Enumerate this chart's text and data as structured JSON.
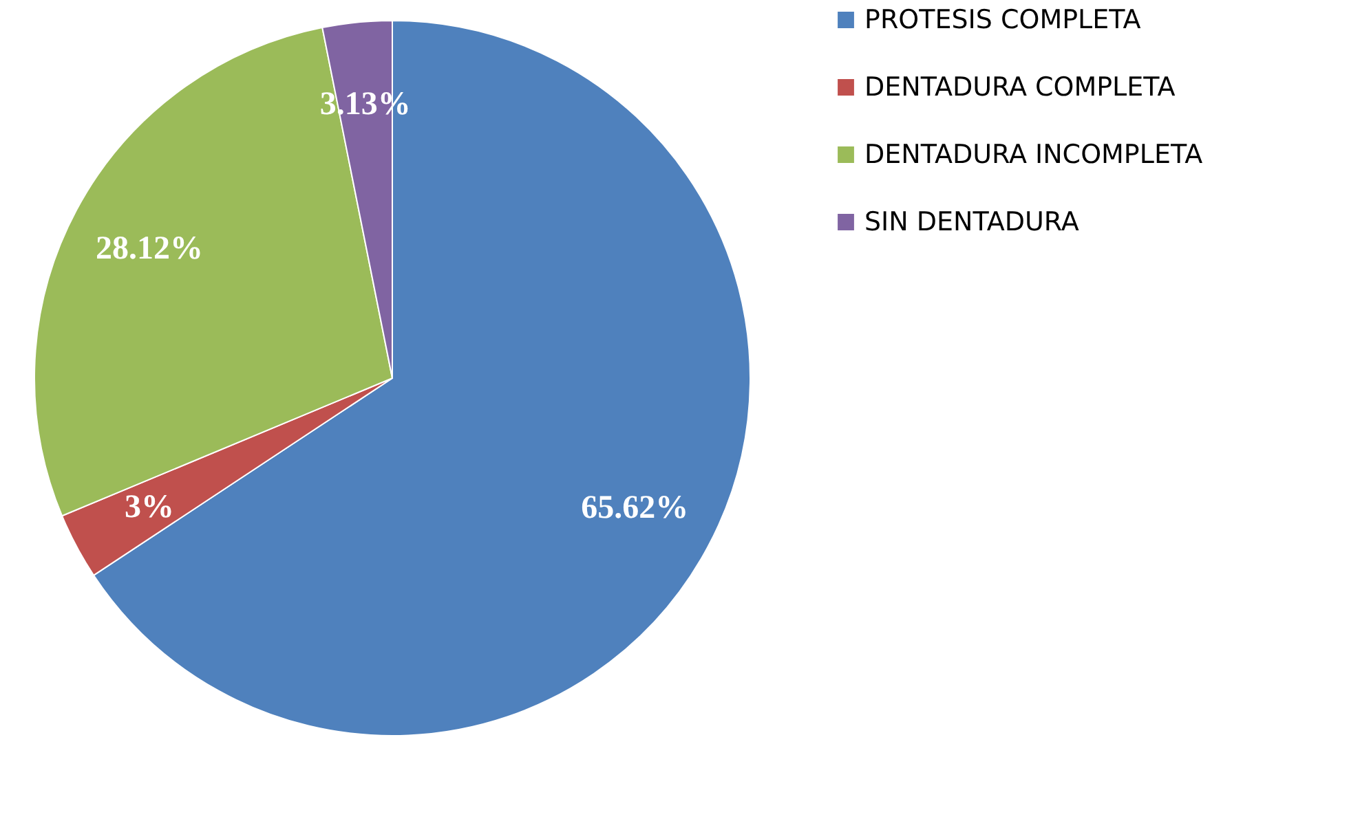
{
  "chart_data": {
    "type": "pie",
    "categories": [
      "PROTESIS COMPLETA",
      "DENTADURA COMPLETA",
      "DENTADURA INCOMPLETA",
      "SIN DENTADURA"
    ],
    "values": [
      65.62,
      3,
      28.12,
      3.13
    ],
    "value_labels": [
      "65.62%",
      "3%",
      "28.12%",
      "3.13%"
    ],
    "colors": [
      "#4f81bd",
      "#c0504d",
      "#9bbb59",
      "#8064a2"
    ],
    "legend": "right"
  }
}
